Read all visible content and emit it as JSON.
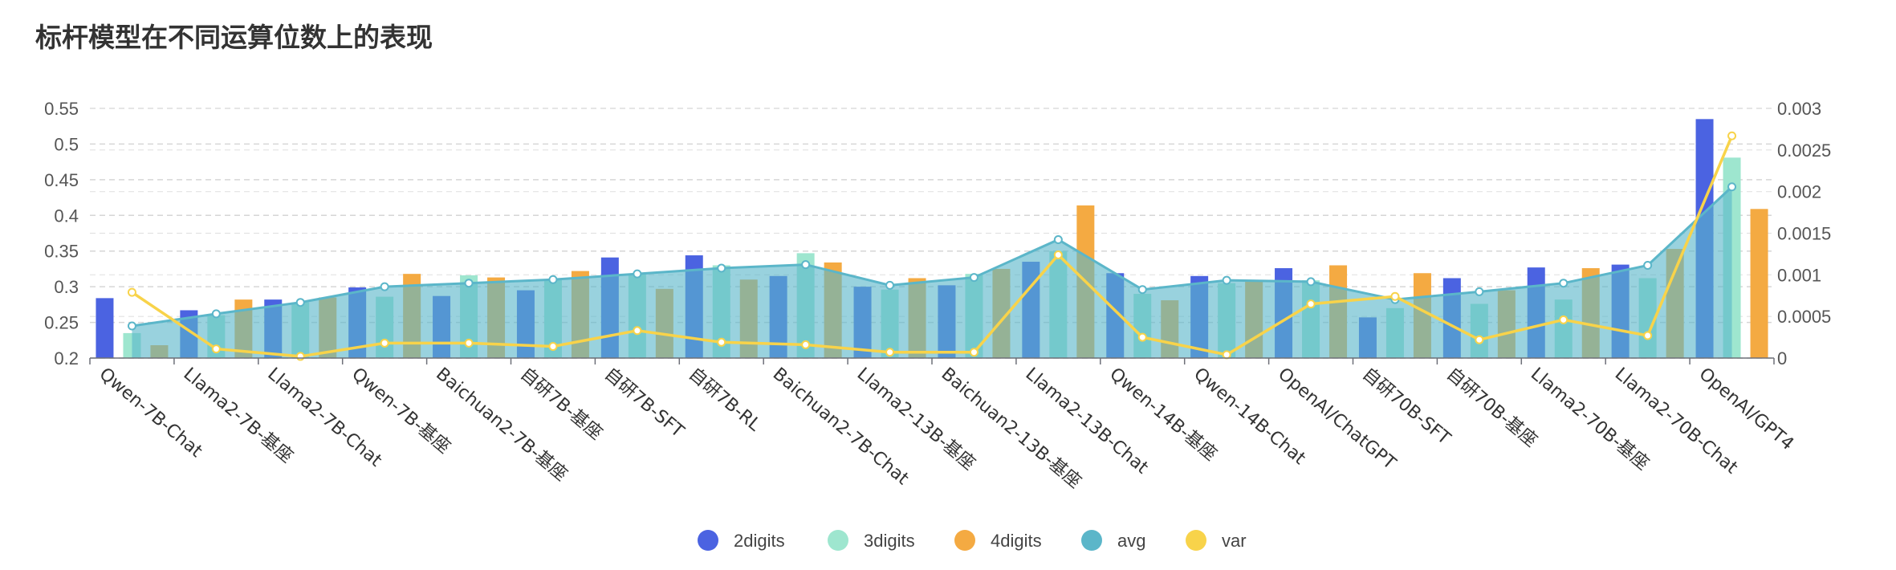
{
  "chart_data": {
    "type": "bar",
    "title": "标杆模型在不同运算位数上的表现",
    "categories": [
      "Qwen-7B-Chat",
      "Llama2-7B-基座",
      "Llama2-7B-Chat",
      "Qwen-7B-基座",
      "Baichuan2-7B-基座",
      "自研7B-基座",
      "自研7B-SFT",
      "自研7B-RL",
      "Baichuan2-7B-Chat",
      "Llama2-13B-基座",
      "Baichuan2-13B-基座",
      "Llama2-13B-Chat",
      "Qwen-14B-基座",
      "Qwen-14B-Chat",
      "OpenAI/ChatGPT",
      "自研70B-SFT",
      "自研70B-基座",
      "Llama2-70B-基座",
      "Llama2-70B-Chat",
      "OpenAI/GPT4"
    ],
    "y_left": {
      "min": 0.2,
      "max": 0.55,
      "ticks": [
        "0.2",
        "0.25",
        "0.3",
        "0.35",
        "0.4",
        "0.45",
        "0.5",
        "0.55"
      ]
    },
    "y_right": {
      "min": 0,
      "max": 0.003,
      "ticks": [
        "0",
        "0.0005",
        "0.001",
        "0.0015",
        "0.002",
        "0.0025",
        "0.003"
      ]
    },
    "grid": true,
    "legend_position": "bottom-center",
    "series": [
      {
        "name": "2digits",
        "type": "bar",
        "axis": "left",
        "color": "#4B63E1",
        "values": [
          0.284,
          0.267,
          0.282,
          0.299,
          0.287,
          0.295,
          0.341,
          0.344,
          0.315,
          0.3,
          0.302,
          0.335,
          0.319,
          0.315,
          0.326,
          0.257,
          0.312,
          0.327,
          0.331,
          0.535
        ]
      },
      {
        "name": "3digits",
        "type": "bar",
        "axis": "left",
        "color": "#9EE6CF",
        "values": [
          0.235,
          0.26,
          0.278,
          0.286,
          0.316,
          0.31,
          0.317,
          0.33,
          0.347,
          0.296,
          0.318,
          0.35,
          0.29,
          0.305,
          0.309,
          0.27,
          0.276,
          0.282,
          0.312,
          0.481
        ]
      },
      {
        "name": "4digits",
        "type": "bar",
        "axis": "left",
        "color": "#F4AA42",
        "values": [
          0.218,
          0.282,
          0.285,
          0.318,
          0.313,
          0.322,
          0.297,
          0.31,
          0.334,
          0.312,
          0.325,
          0.414,
          0.281,
          0.309,
          0.33,
          0.319,
          0.295,
          0.326,
          0.353,
          0.409
        ]
      },
      {
        "name": "avg",
        "type": "area",
        "axis": "left",
        "color": "#5BB6C9",
        "values": [
          0.245,
          0.262,
          0.278,
          0.3,
          0.305,
          0.31,
          0.318,
          0.326,
          0.331,
          0.302,
          0.313,
          0.366,
          0.296,
          0.309,
          0.307,
          0.282,
          0.293,
          0.305,
          0.33,
          0.44
        ]
      },
      {
        "name": "var",
        "type": "line",
        "axis": "right",
        "color": "#F8D34A",
        "values": [
          0.00079,
          0.00011,
          2e-05,
          0.00018,
          0.00018,
          0.00014,
          0.00033,
          0.00019,
          0.00016,
          7e-05,
          7e-05,
          0.00124,
          0.00025,
          4e-05,
          0.00065,
          0.00074,
          0.00022,
          0.00046,
          0.00027,
          0.00267
        ]
      }
    ]
  }
}
